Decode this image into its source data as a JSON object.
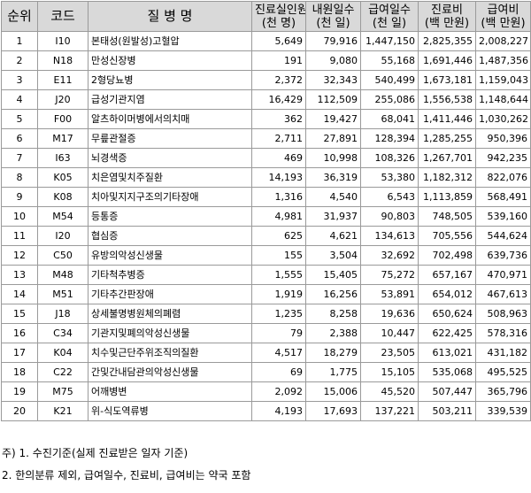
{
  "table": {
    "headers": {
      "rank": "순위",
      "code": "코드",
      "disease": "질 병 명",
      "patients": [
        "진료실인원",
        "(천 명)"
      ],
      "visit_days": [
        "내원일수",
        "(천 일)"
      ],
      "benefit_days": [
        "급여일수",
        "(천 일)"
      ],
      "medical_cost": [
        "진료비",
        "(백 만원)"
      ],
      "benefit_cost": [
        "급여비",
        "(백 만원)"
      ]
    },
    "rows": [
      {
        "rank": "1",
        "code": "I10",
        "disease": "본태성(원발성)고혈압",
        "patients": "5,649",
        "visit_days": "79,916",
        "benefit_days": "1,447,150",
        "medical_cost": "2,825,355",
        "benefit_cost": "2,008,227"
      },
      {
        "rank": "2",
        "code": "N18",
        "disease": "만성신장병",
        "patients": "191",
        "visit_days": "9,080",
        "benefit_days": "55,168",
        "medical_cost": "1,691,446",
        "benefit_cost": "1,487,356"
      },
      {
        "rank": "3",
        "code": "E11",
        "disease": "2형당뇨병",
        "patients": "2,372",
        "visit_days": "32,343",
        "benefit_days": "540,499",
        "medical_cost": "1,673,181",
        "benefit_cost": "1,159,043"
      },
      {
        "rank": "4",
        "code": "J20",
        "disease": "급성기관지염",
        "patients": "16,429",
        "visit_days": "112,509",
        "benefit_days": "255,086",
        "medical_cost": "1,556,538",
        "benefit_cost": "1,148,644"
      },
      {
        "rank": "5",
        "code": "F00",
        "disease": "알츠하이머병에서의치매",
        "patients": "362",
        "visit_days": "19,427",
        "benefit_days": "68,041",
        "medical_cost": "1,411,446",
        "benefit_cost": "1,030,262"
      },
      {
        "rank": "6",
        "code": "M17",
        "disease": "무릎관절증",
        "patients": "2,711",
        "visit_days": "27,891",
        "benefit_days": "128,394",
        "medical_cost": "1,285,255",
        "benefit_cost": "950,396"
      },
      {
        "rank": "7",
        "code": "I63",
        "disease": "뇌경색증",
        "patients": "469",
        "visit_days": "10,998",
        "benefit_days": "108,326",
        "medical_cost": "1,267,701",
        "benefit_cost": "942,235"
      },
      {
        "rank": "8",
        "code": "K05",
        "disease": "치은염및치주질환",
        "patients": "14,193",
        "visit_days": "36,319",
        "benefit_days": "53,380",
        "medical_cost": "1,182,312",
        "benefit_cost": "822,076"
      },
      {
        "rank": "9",
        "code": "K08",
        "disease": "치아및지지구조의기타장애",
        "patients": "1,316",
        "visit_days": "4,540",
        "benefit_days": "6,543",
        "medical_cost": "1,113,859",
        "benefit_cost": "568,491"
      },
      {
        "rank": "10",
        "code": "M54",
        "disease": "등통증",
        "patients": "4,981",
        "visit_days": "31,937",
        "benefit_days": "90,803",
        "medical_cost": "748,505",
        "benefit_cost": "539,160"
      },
      {
        "rank": "11",
        "code": "I20",
        "disease": "협심증",
        "patients": "625",
        "visit_days": "4,621",
        "benefit_days": "134,613",
        "medical_cost": "705,556",
        "benefit_cost": "544,624"
      },
      {
        "rank": "12",
        "code": "C50",
        "disease": "유방의악성신생물",
        "patients": "155",
        "visit_days": "3,504",
        "benefit_days": "32,692",
        "medical_cost": "702,498",
        "benefit_cost": "639,736"
      },
      {
        "rank": "13",
        "code": "M48",
        "disease": "기타척추병증",
        "patients": "1,555",
        "visit_days": "15,405",
        "benefit_days": "75,272",
        "medical_cost": "657,167",
        "benefit_cost": "470,971"
      },
      {
        "rank": "14",
        "code": "M51",
        "disease": "기타추간판장애",
        "patients": "1,919",
        "visit_days": "16,256",
        "benefit_days": "53,891",
        "medical_cost": "654,012",
        "benefit_cost": "467,613"
      },
      {
        "rank": "15",
        "code": "J18",
        "disease": "상세불명병원체의폐렴",
        "patients": "1,235",
        "visit_days": "8,258",
        "benefit_days": "19,636",
        "medical_cost": "650,624",
        "benefit_cost": "508,963"
      },
      {
        "rank": "16",
        "code": "C34",
        "disease": "기관지및폐의악성신생물",
        "patients": "79",
        "visit_days": "2,388",
        "benefit_days": "10,447",
        "medical_cost": "622,425",
        "benefit_cost": "578,316"
      },
      {
        "rank": "17",
        "code": "K04",
        "disease": "치수및근단주위조직의질환",
        "patients": "4,517",
        "visit_days": "18,279",
        "benefit_days": "23,505",
        "medical_cost": "613,021",
        "benefit_cost": "431,182"
      },
      {
        "rank": "18",
        "code": "C22",
        "disease": "간및간내담관의악성신생물",
        "patients": "69",
        "visit_days": "1,775",
        "benefit_days": "15,105",
        "medical_cost": "535,068",
        "benefit_cost": "495,525"
      },
      {
        "rank": "19",
        "code": "M75",
        "disease": "어깨병변",
        "patients": "2,092",
        "visit_days": "15,006",
        "benefit_days": "45,520",
        "medical_cost": "507,447",
        "benefit_cost": "365,796"
      },
      {
        "rank": "20",
        "code": "K21",
        "disease": "위-식도역류병",
        "patients": "4,193",
        "visit_days": "17,693",
        "benefit_days": "137,221",
        "medical_cost": "503,211",
        "benefit_cost": "339,539"
      }
    ]
  },
  "notes": [
    "주) 1. 수진기준(실제 진료받은 일자 기준)",
    "2. 한의분류 제외, 급여일수, 진료비, 급여비는 약국 포함"
  ]
}
